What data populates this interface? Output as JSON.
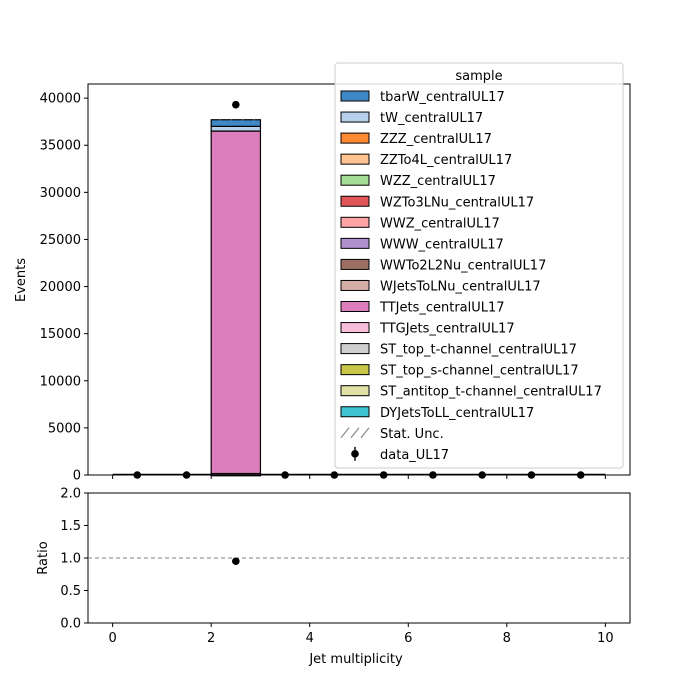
{
  "chart_data": [
    {
      "type": "bar",
      "stacked": true,
      "xlabel": "",
      "ylabel": "Events",
      "xlim": [
        -0.5,
        10.5
      ],
      "ylim": [
        0,
        41500
      ],
      "yticks": [
        0,
        5000,
        10000,
        15000,
        20000,
        25000,
        30000,
        35000,
        40000
      ],
      "ytick_labels": [
        "0",
        "5000",
        "10000",
        "15000",
        "20000",
        "25000",
        "30000",
        "35000",
        "40000"
      ],
      "bin_edges": [
        0,
        1,
        2,
        3,
        4,
        5,
        6,
        7,
        8,
        9,
        10
      ],
      "legend": {
        "title": "sample",
        "placement": "top-right",
        "entries": [
          {
            "label": "tbarW_centralUL17",
            "color": "#3f88c5",
            "kind": "patch"
          },
          {
            "label": "tW_centralUL17",
            "color": "#b7cfea",
            "kind": "patch"
          },
          {
            "label": "ZZZ_centralUL17",
            "color": "#ff8a33",
            "kind": "patch"
          },
          {
            "label": "ZZTo4L_centralUL17",
            "color": "#ffc38f",
            "kind": "patch"
          },
          {
            "label": "WZZ_centralUL17",
            "color": "#a4dd94",
            "kind": "patch"
          },
          {
            "label": "WZTo3LNu_centralUL17",
            "color": "#e05558",
            "kind": "patch"
          },
          {
            "label": "WWZ_centralUL17",
            "color": "#ffa6a4",
            "kind": "patch"
          },
          {
            "label": "WWW_centralUL17",
            "color": "#ae90cd",
            "kind": "patch"
          },
          {
            "label": "WWTo2L2Nu_centralUL17",
            "color": "#9d6f63",
            "kind": "patch"
          },
          {
            "label": "WJetsToLNu_centralUL17",
            "color": "#d4ada6",
            "kind": "patch"
          },
          {
            "label": "TTJets_centralUL17",
            "color": "#dc7ebc",
            "kind": "patch"
          },
          {
            "label": "TTGJets_centralUL17",
            "color": "#f6bedb",
            "kind": "patch"
          },
          {
            "label": "ST_top_t-channel_centralUL17",
            "color": "#cfcfcf",
            "kind": "patch"
          },
          {
            "label": "ST_top_s-channel_centralUL17",
            "color": "#c7c546",
            "kind": "patch"
          },
          {
            "label": "ST_antitop_t-channel_centralUL17",
            "color": "#e0e1a6",
            "kind": "patch"
          },
          {
            "label": "DYJetsToLL_centralUL17",
            "color": "#3ec5d1",
            "kind": "patch"
          },
          {
            "label": "Stat. Unc.",
            "color": "#888888",
            "kind": "hatch"
          },
          {
            "label": "data_UL17",
            "color": "#000000",
            "kind": "errorbar"
          }
        ]
      },
      "stack_bin": {
        "bin": [
          2,
          3
        ],
        "segments": [
          {
            "sample": "DYJetsToLL_centralUL17",
            "value": 5
          },
          {
            "sample": "ST_antitop_t-channel_centralUL17",
            "value": 0
          },
          {
            "sample": "ST_top_s-channel_centralUL17",
            "value": 0
          },
          {
            "sample": "ST_top_t-channel_centralUL17",
            "value": 0
          },
          {
            "sample": "TTGJets_centralUL17",
            "value": 150
          },
          {
            "sample": "TTJets_centralUL17",
            "value": 36350
          },
          {
            "sample": "WJetsToLNu_centralUL17",
            "value": 0
          },
          {
            "sample": "WWTo2L2Nu_centralUL17",
            "value": 0
          },
          {
            "sample": "WWW_centralUL17",
            "value": 0
          },
          {
            "sample": "WWZ_centralUL17",
            "value": 0
          },
          {
            "sample": "WZTo3LNu_centralUL17",
            "value": 0
          },
          {
            "sample": "WZZ_centralUL17",
            "value": 0
          },
          {
            "sample": "ZZTo4L_centralUL17",
            "value": 0
          },
          {
            "sample": "ZZZ_centralUL17",
            "value": 0
          },
          {
            "sample": "tW_centralUL17",
            "value": 500
          },
          {
            "sample": "tbarW_centralUL17",
            "value": 700
          }
        ]
      },
      "data_points": {
        "name": "data_UL17",
        "x": [
          0.5,
          1.5,
          2.5,
          3.5,
          4.5,
          5.5,
          6.5,
          7.5,
          8.5,
          9.5
        ],
        "y": [
          0,
          0,
          39300,
          0,
          0,
          0,
          0,
          0,
          0,
          0
        ]
      }
    },
    {
      "type": "scatter",
      "xlabel": "Jet multiplicity",
      "ylabel": "Ratio",
      "xlim": [
        -0.5,
        10.5
      ],
      "ylim": [
        0,
        2
      ],
      "xticks": [
        0,
        2,
        4,
        6,
        8,
        10
      ],
      "xtick_labels": [
        "0",
        "2",
        "4",
        "6",
        "8",
        "10"
      ],
      "yticks": [
        0,
        0.5,
        1.0,
        1.5,
        2.0
      ],
      "ytick_labels": [
        "0.0",
        "0.5",
        "1.0",
        "1.5",
        "2.0"
      ],
      "reference_line": 1.0,
      "points": {
        "x": [
          2.5
        ],
        "y": [
          0.95
        ]
      }
    }
  ]
}
